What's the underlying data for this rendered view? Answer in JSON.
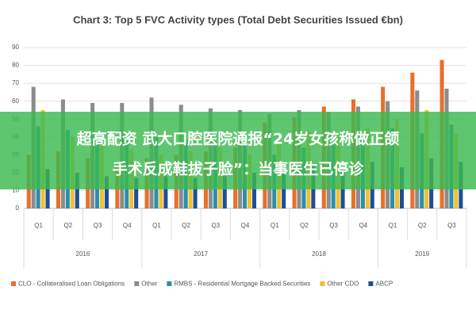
{
  "chart_data": {
    "type": "bar",
    "title": "Chart 3: Top 5 FVC Activity types (Total Debt Securities Issued €bn)",
    "groups": [
      {
        "label": "2016",
        "categories": [
          "Q1",
          "Q2",
          "Q3",
          "Q4"
        ]
      },
      {
        "label": "2017",
        "categories": [
          "Q1",
          "Q2",
          "Q3",
          "Q4"
        ]
      },
      {
        "label": "2018",
        "categories": [
          "Q1",
          "Q2",
          "Q3",
          "Q4"
        ]
      },
      {
        "label": "2019",
        "categories": [
          "Q1",
          "Q2",
          "Q3"
        ]
      }
    ],
    "series": [
      {
        "name": "CLO - Collateralised Loan Obligations",
        "color": "#e8702a",
        "values": [
          30,
          32,
          28,
          25,
          28,
          30,
          32,
          34,
          48,
          51,
          57,
          61,
          68,
          76,
          83
        ]
      },
      {
        "name": "Other",
        "color": "#8c8c8c",
        "values": [
          68,
          61,
          59,
          59,
          62,
          58,
          56,
          55,
          53,
          55,
          54,
          57,
          60,
          66,
          67
        ]
      },
      {
        "name": "RMBS - Residential Mortgage Backed Securities",
        "color": "#2a8fae",
        "values": [
          46,
          44,
          40,
          38,
          40,
          38,
          36,
          35,
          30,
          34,
          37,
          38,
          45,
          42,
          47
        ]
      },
      {
        "name": "Other CDO",
        "color": "#f2c02e",
        "values": [
          55,
          40,
          35,
          33,
          30,
          32,
          34,
          30,
          36,
          43,
          42,
          45,
          50,
          55,
          42
        ]
      },
      {
        "name": "ABCP",
        "color": "#1f4e99",
        "values": [
          22,
          20,
          18,
          17,
          18,
          17,
          18,
          20,
          22,
          24,
          25,
          26,
          23,
          28,
          26
        ]
      }
    ],
    "ylim": [
      0,
      90
    ],
    "yticks": [
      0,
      10,
      20,
      30,
      40,
      50,
      60,
      70,
      80,
      90
    ],
    "grid": true,
    "legend": "bottom"
  },
  "overlay": {
    "lines": [
      "超高配资 武大口腔医院通报“24岁女孩称做正颌",
      "手术反成鞋拔子脸”：当事医生已停诊"
    ]
  }
}
